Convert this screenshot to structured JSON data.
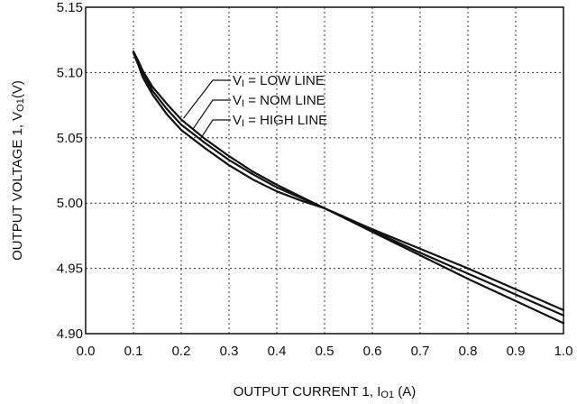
{
  "chart_data": {
    "type": "line",
    "xlabel": {
      "main": "OUTPUT CURRENT 1, I",
      "sub": "O1",
      "tail": " (A)"
    },
    "ylabel": {
      "main": "OUTPUT VOLTAGE  1, V",
      "sub": "O1",
      "tail": "(V)"
    },
    "xlim": [
      0.0,
      1.0
    ],
    "ylim": [
      4.9,
      5.15
    ],
    "x_ticks": [
      "0.0",
      "0.1",
      "0.2",
      "0.3",
      "0.4",
      "0.5",
      "0.6",
      "0.7",
      "0.8",
      "0.9",
      "1.0"
    ],
    "y_ticks": [
      "4.90",
      "4.95",
      "5.00",
      "5.05",
      "5.10",
      "5.15"
    ],
    "grid": true,
    "series": [
      {
        "name": "LOW LINE",
        "label_prefix": "V",
        "label_sub": "I",
        "label_eq": " = LOW LINE",
        "x": [
          0.1,
          0.11,
          0.12,
          0.14,
          0.17,
          0.2,
          0.25,
          0.3,
          0.35,
          0.4,
          0.45,
          0.5,
          0.55,
          0.6,
          0.7,
          0.8,
          0.9,
          1.0
        ],
        "y": [
          5.116,
          5.109,
          5.101,
          5.089,
          5.076,
          5.064,
          5.049,
          5.036,
          5.024,
          5.014,
          5.005,
          4.996,
          4.988,
          4.98,
          4.965,
          4.95,
          4.934,
          4.918
        ]
      },
      {
        "name": "NOM LINE",
        "label_prefix": "V",
        "label_sub": "I",
        "label_eq": " = NOM LINE",
        "x": [
          0.1,
          0.11,
          0.12,
          0.14,
          0.17,
          0.2,
          0.25,
          0.3,
          0.35,
          0.4,
          0.45,
          0.5,
          0.55,
          0.6,
          0.7,
          0.8,
          0.9,
          1.0
        ],
        "y": [
          5.116,
          5.108,
          5.099,
          5.086,
          5.072,
          5.06,
          5.046,
          5.033,
          5.022,
          5.012,
          5.004,
          4.996,
          4.988,
          4.979,
          4.962,
          4.946,
          4.93,
          4.914
        ]
      },
      {
        "name": "HIGH LINE",
        "label_prefix": "V",
        "label_sub": "I",
        "label_eq": " = HIGH LINE",
        "x": [
          0.1,
          0.11,
          0.12,
          0.14,
          0.17,
          0.2,
          0.25,
          0.3,
          0.35,
          0.4,
          0.45,
          0.5,
          0.55,
          0.6,
          0.7,
          0.8,
          0.9,
          1.0
        ],
        "y": [
          5.115,
          5.106,
          5.096,
          5.083,
          5.068,
          5.056,
          5.042,
          5.029,
          5.018,
          5.009,
          5.002,
          4.996,
          4.987,
          4.978,
          4.96,
          4.942,
          4.925,
          4.908
        ]
      }
    ]
  }
}
